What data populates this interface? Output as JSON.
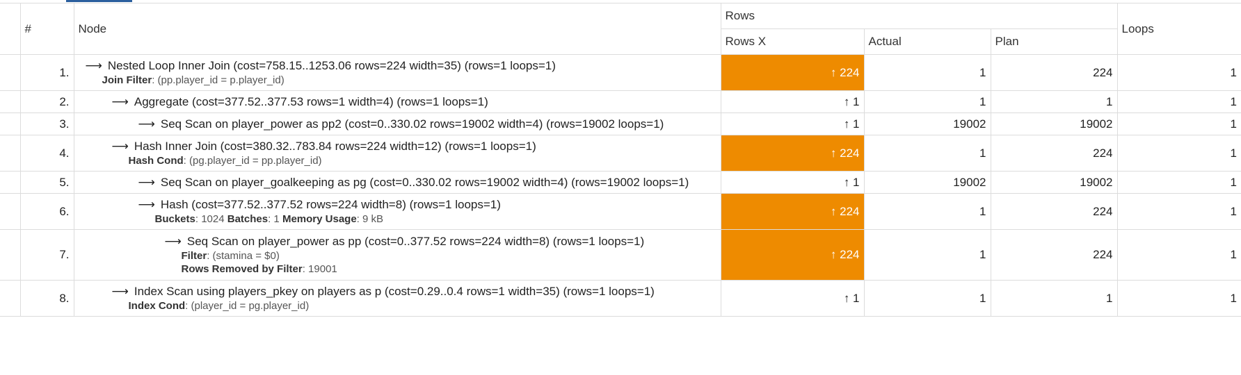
{
  "header": {
    "index": "#",
    "node": "Node",
    "rows_group": "Rows",
    "rows_x": "Rows X",
    "actual": "Actual",
    "plan": "Plan",
    "loops": "Loops"
  },
  "colors": {
    "hot": "#ee8b00"
  },
  "rows": [
    {
      "index": "1.",
      "title": "Nested Loop Inner Join (cost=758.15..1253.06 rows=224 width=35) (rows=1 loops=1)",
      "details": [
        {
          "label": "Join Filter",
          "value": ": (pp.player_id = p.player_id)"
        }
      ],
      "rows_x": "↑ 224",
      "hot": true,
      "actual": "1",
      "plan": "224",
      "loops": "1"
    },
    {
      "index": "2.",
      "title": "Aggregate (cost=377.52..377.53 rows=1 width=4) (rows=1 loops=1)",
      "details": [],
      "rows_x": "↑ 1",
      "hot": false,
      "actual": "1",
      "plan": "1",
      "loops": "1"
    },
    {
      "index": "3.",
      "title": "Seq Scan on player_power as pp2 (cost=0..330.02 rows=19002 width=4) (rows=19002 loops=1)",
      "details": [],
      "rows_x": "↑ 1",
      "hot": false,
      "actual": "19002",
      "plan": "19002",
      "loops": "1"
    },
    {
      "index": "4.",
      "title": "Hash Inner Join (cost=380.32..783.84 rows=224 width=12) (rows=1 loops=1)",
      "details": [
        {
          "label": "Hash Cond",
          "value": ": (pg.player_id = pp.player_id)"
        }
      ],
      "rows_x": "↑ 224",
      "hot": true,
      "actual": "1",
      "plan": "224",
      "loops": "1"
    },
    {
      "index": "5.",
      "title": "Seq Scan on player_goalkeeping as pg (cost=0..330.02 rows=19002 width=4) (rows=19002 loops=1)",
      "details": [],
      "rows_x": "↑ 1",
      "hot": false,
      "actual": "19002",
      "plan": "19002",
      "loops": "1"
    },
    {
      "index": "6.",
      "title": "Hash (cost=377.52..377.52 rows=224 width=8) (rows=1 loops=1)",
      "details_inline": [
        {
          "label": "Buckets",
          "value": ": 1024 "
        },
        {
          "label": "Batches",
          "value": ": 1 "
        },
        {
          "label": "Memory Usage",
          "value": ": 9 kB"
        }
      ],
      "rows_x": "↑ 224",
      "hot": true,
      "actual": "1",
      "plan": "224",
      "loops": "1"
    },
    {
      "index": "7.",
      "title": "Seq Scan on player_power as pp (cost=0..377.52 rows=224 width=8) (rows=1 loops=1)",
      "details": [
        {
          "label": "Filter",
          "value": ": (stamina = $0)"
        },
        {
          "label": "Rows Removed by Filter",
          "value": ": 19001"
        }
      ],
      "rows_x": "↑ 224",
      "hot": true,
      "actual": "1",
      "plan": "224",
      "loops": "1"
    },
    {
      "index": "8.",
      "title": "Index Scan using players_pkey on players as p (cost=0.29..0.4 rows=1 width=35) (rows=1 loops=1)",
      "details": [
        {
          "label": "Index Cond",
          "value": ": (player_id = pg.player_id)"
        }
      ],
      "rows_x": "↑ 1",
      "hot": false,
      "actual": "1",
      "plan": "1",
      "loops": "1"
    }
  ]
}
